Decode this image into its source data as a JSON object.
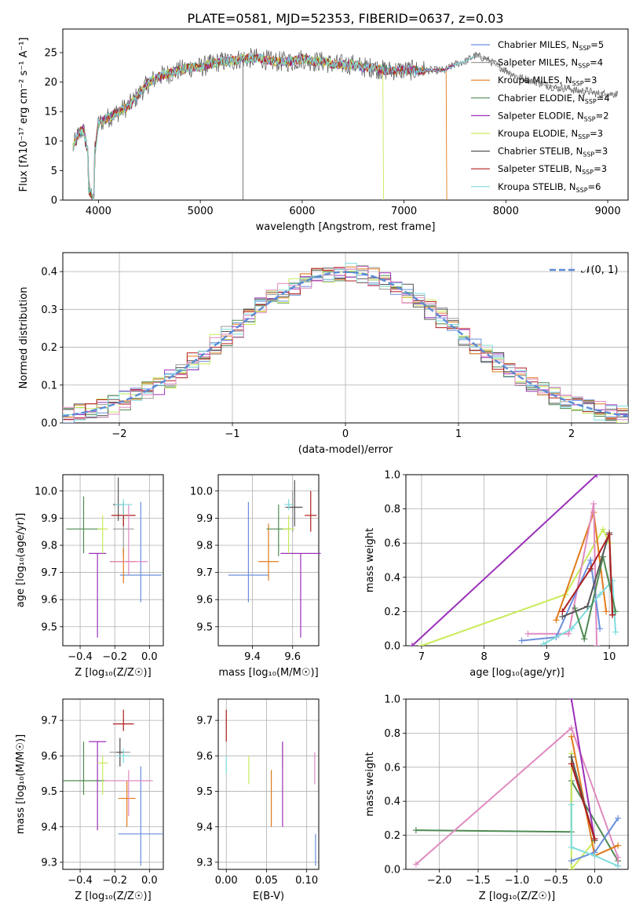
{
  "figure": {
    "title": "PLATE=0581, MJD=52353, FIBERID=0637, z=0.03"
  },
  "colors": {
    "chabrier_miles": "#6a8fdc",
    "salpeter_miles": "#9a9a9a",
    "kroupa_miles": "#e07b1a",
    "chabrier_elodie": "#4f8a52",
    "salpeter_elodie": "#9b30b8",
    "kroupa_elodie": "#c8ea5a",
    "chabrier_stelib": "#555555",
    "salpeter_stelib": "#b01e1e",
    "kroupa_stelib": "#7fdcdc",
    "pink": "#e08ac0",
    "gauss": "#5b8bd6"
  },
  "chart_data": [
    {
      "type": "line",
      "id": "spectrum",
      "xlabel": "wavelength [Angstrom, rest frame]",
      "ylabel": "Flux [fλ10⁻¹⁷ erg cm⁻² s⁻¹ A⁻¹]",
      "xlim": [
        3650,
        9200
      ],
      "ylim": [
        0,
        29
      ],
      "xticks": [
        4000,
        5000,
        6000,
        7000,
        8000,
        9000
      ],
      "yticks": [
        0,
        5,
        10,
        15,
        20,
        25
      ],
      "x": [
        3750,
        3800,
        3850,
        3900,
        3950,
        4000,
        4100,
        4200,
        4300,
        4400,
        4500,
        4600,
        4700,
        4800,
        4900,
        5000,
        5100,
        5200,
        5300,
        5400,
        5500,
        5600,
        5700,
        5800,
        5900,
        6000,
        6100,
        6200,
        6300,
        6400,
        6500,
        6600,
        6700,
        6800,
        6900,
        7000,
        7100,
        7200,
        7300,
        7400,
        7500,
        7600,
        7700,
        7800,
        7900,
        8000,
        8100,
        8200,
        8300,
        8400,
        8500,
        8600,
        8700,
        8800,
        8900,
        9000,
        9100
      ],
      "data_y": [
        9,
        11,
        12,
        8,
        6,
        13,
        14,
        15,
        16,
        18,
        20,
        21,
        21.5,
        22,
        22.5,
        22.5,
        23,
        23.5,
        23.5,
        24,
        24,
        24,
        23.5,
        23.5,
        23.5,
        24,
        23.5,
        23.5,
        23,
        23,
        23,
        22.5,
        22.5,
        22,
        22,
        22,
        22,
        22,
        22,
        22,
        23,
        23.5,
        24.5,
        24,
        23,
        22,
        21,
        20.5,
        20,
        19.5,
        19,
        19,
        18.5,
        18.5,
        18,
        18,
        18
      ],
      "legend": [
        {
          "label": "Chabrier MILES, N",
          "sub": "SSP",
          "suffix": "=5",
          "color_key": "chabrier_miles"
        },
        {
          "label": "Salpeter MILES, N",
          "sub": "SSP",
          "suffix": "=4",
          "color_key": "salpeter_miles"
        },
        {
          "label": "Kroupa MILES, N",
          "sub": "SSP",
          "suffix": "=3",
          "color_key": "kroupa_miles"
        },
        {
          "label": "Chabrier ELODIE, N",
          "sub": "SSP",
          "suffix": "=4",
          "color_key": "chabrier_elodie"
        },
        {
          "label": "Salpeter ELODIE, N",
          "sub": "SSP",
          "suffix": "=2",
          "color_key": "salpeter_elodie"
        },
        {
          "label": "Kroupa ELODIE, N",
          "sub": "SSP",
          "suffix": "=3",
          "color_key": "kroupa_elodie"
        },
        {
          "label": "Chabrier STELIB, N",
          "sub": "SSP",
          "suffix": "=3",
          "color_key": "chabrier_stelib"
        },
        {
          "label": "Salpeter STELIB, N",
          "sub": "SSP",
          "suffix": "=3",
          "color_key": "salpeter_stelib"
        },
        {
          "label": "Kroupa STELIB, N",
          "sub": "SSP",
          "suffix": "=6",
          "color_key": "kroupa_stelib"
        }
      ]
    },
    {
      "type": "line",
      "id": "residuals",
      "xlabel": "(data-model)/error",
      "ylabel": "Normed distribution",
      "xlim": [
        -2.5,
        2.5
      ],
      "ylim": [
        0,
        0.45
      ],
      "xticks": [
        -2,
        -1,
        0,
        1,
        2
      ],
      "yticks": [
        0.0,
        0.1,
        0.2,
        0.3,
        0.4
      ],
      "gauss_label": "𝒩(0, 1)"
    },
    {
      "type": "scatter",
      "id": "age_vs_Z",
      "xlabel": "Z [log₁₀(Z/Z☉)]",
      "ylabel": "age  [log₁₀(age/yr)]",
      "xlim": [
        -0.5,
        0.08
      ],
      "ylim": [
        9.43,
        10.06
      ],
      "xticks": [
        -0.4,
        -0.2,
        0.0
      ],
      "yticks": [
        9.5,
        9.6,
        9.7,
        9.8,
        9.9,
        10.0
      ],
      "points": [
        {
          "x": -0.05,
          "y": 9.69,
          "xerr": 0.12,
          "yerr_lo": 0.1,
          "yerr_hi": 0.27,
          "color_key": "chabrier_miles"
        },
        {
          "x": -0.15,
          "y": 9.86,
          "xerr": 0.06,
          "yerr_lo": 0.1,
          "yerr_hi": 0.1,
          "color_key": "salpeter_miles"
        },
        {
          "x": -0.15,
          "y": 9.74,
          "xerr": 0.07,
          "yerr_lo": 0.08,
          "yerr_hi": 0.05,
          "color_key": "kroupa_miles"
        },
        {
          "x": -0.38,
          "y": 9.86,
          "xerr": 0.1,
          "yerr_lo": 0.09,
          "yerr_hi": 0.12,
          "color_key": "chabrier_elodie"
        },
        {
          "x": -0.3,
          "y": 9.77,
          "xerr": 0.05,
          "yerr_lo": 0.31,
          "yerr_hi": 0.0,
          "color_key": "salpeter_elodie"
        },
        {
          "x": -0.27,
          "y": 9.86,
          "xerr": 0.03,
          "yerr_lo": 0.09,
          "yerr_hi": 0.05,
          "color_key": "kroupa_elodie"
        },
        {
          "x": -0.18,
          "y": 9.95,
          "xerr": 0.03,
          "yerr_lo": 0.06,
          "yerr_hi": 0.1,
          "color_key": "chabrier_stelib"
        },
        {
          "x": -0.15,
          "y": 9.91,
          "xerr": 0.07,
          "yerr_lo": 0.04,
          "yerr_hi": 0.04,
          "color_key": "salpeter_stelib"
        },
        {
          "x": -0.12,
          "y": 9.74,
          "xerr": 0.11,
          "yerr_lo": 0.05,
          "yerr_hi": 0.21,
          "color_key": "pink"
        },
        {
          "x": -0.15,
          "y": 9.95,
          "xerr": 0.05,
          "yerr_lo": 0.04,
          "yerr_hi": 0.02,
          "color_key": "kroupa_stelib"
        }
      ]
    },
    {
      "type": "scatter",
      "id": "age_vs_mass",
      "xlabel": "mass [log₁₀(M/M☉)]",
      "xlim": [
        9.23,
        9.73
      ],
      "ylim": [
        9.43,
        10.06
      ],
      "xticks": [
        9.4,
        9.6
      ],
      "yticks": [
        9.5,
        9.6,
        9.7,
        9.8,
        9.9,
        10.0
      ],
      "points": [
        {
          "x": 9.38,
          "y": 9.69,
          "xerr": 0.1,
          "yerr_lo": 0.1,
          "yerr_hi": 0.27,
          "color_key": "chabrier_miles"
        },
        {
          "x": 9.6,
          "y": 9.94,
          "xerr": 0.04,
          "yerr_lo": 0.09,
          "yerr_hi": 0.06,
          "color_key": "salpeter_miles"
        },
        {
          "x": 9.48,
          "y": 9.74,
          "xerr": 0.05,
          "yerr_lo": 0.07,
          "yerr_hi": 0.14,
          "color_key": "kroupa_miles"
        },
        {
          "x": 9.53,
          "y": 9.86,
          "xerr": 0.06,
          "yerr_lo": 0.1,
          "yerr_hi": 0.09,
          "color_key": "chabrier_elodie"
        },
        {
          "x": 9.64,
          "y": 9.77,
          "xerr": 0.1,
          "yerr_lo": 0.31,
          "yerr_hi": 0.0,
          "color_key": "salpeter_elodie"
        },
        {
          "x": 9.58,
          "y": 9.86,
          "xerr": 0.03,
          "yerr_lo": 0.09,
          "yerr_hi": 0.05,
          "color_key": "kroupa_elodie"
        },
        {
          "x": 9.61,
          "y": 9.94,
          "xerr": 0.04,
          "yerr_lo": 0.07,
          "yerr_hi": 0.1,
          "color_key": "chabrier_stelib"
        },
        {
          "x": 9.69,
          "y": 9.91,
          "xerr": 0.03,
          "yerr_lo": 0.06,
          "yerr_hi": 0.09,
          "color_key": "salpeter_stelib"
        },
        {
          "x": 9.58,
          "y": 9.95,
          "xerr": 0.02,
          "yerr_lo": 0.02,
          "yerr_hi": 0.02,
          "color_key": "kroupa_stelib"
        }
      ]
    },
    {
      "type": "line",
      "id": "weight_vs_age",
      "xlabel": "age  [log₁₀(age/yr)]",
      "ylabel": "mass weight",
      "xlim": [
        6.75,
        10.3
      ],
      "ylim": [
        0,
        1.0
      ],
      "xticks": [
        7,
        8,
        9,
        10
      ],
      "yticks": [
        0.0,
        0.2,
        0.4,
        0.6,
        0.8,
        1.0
      ],
      "series": [
        {
          "color_key": "salpeter_elodie",
          "x": [
            6.85,
            9.8
          ],
          "y": [
            0.0,
            1.0
          ]
        },
        {
          "color_key": "kroupa_elodie",
          "x": [
            7.0,
            9.3,
            9.9,
            10.0
          ],
          "y": [
            0.0,
            0.3,
            0.68,
            0.6
          ]
        },
        {
          "color_key": "kroupa_miles",
          "x": [
            9.15,
            9.75,
            9.95
          ],
          "y": [
            0.15,
            0.78,
            0.2
          ]
        },
        {
          "color_key": "pink",
          "x": [
            8.7,
            9.35,
            9.75,
            9.8
          ],
          "y": [
            0.07,
            0.07,
            0.83,
            0.0
          ]
        },
        {
          "color_key": "chabrier_miles",
          "x": [
            8.6,
            9.15,
            9.7,
            9.85
          ],
          "y": [
            0.03,
            0.05,
            0.5,
            0.1
          ]
        },
        {
          "color_key": "kroupa_stelib",
          "x": [
            8.95,
            9.4,
            9.85,
            10.05,
            10.1
          ],
          "y": [
            0.01,
            0.1,
            0.3,
            0.38,
            0.08
          ]
        },
        {
          "color_key": "chabrier_elodie",
          "x": [
            9.45,
            9.6,
            9.9,
            10.1
          ],
          "y": [
            0.22,
            0.04,
            0.52,
            0.2
          ]
        },
        {
          "color_key": "chabrier_stelib",
          "x": [
            9.25,
            9.65,
            10.0,
            10.05
          ],
          "y": [
            0.17,
            0.23,
            0.66,
            0.18
          ]
        },
        {
          "color_key": "salpeter_stelib",
          "x": [
            9.25,
            9.7,
            10.0,
            10.05
          ],
          "y": [
            0.2,
            0.45,
            0.65,
            0.18
          ]
        }
      ]
    },
    {
      "type": "scatter",
      "id": "mass_vs_Z",
      "xlabel": "Z [log₁₀(Z/Z☉)]",
      "ylabel": "mass [log₁₀(M/M☉)]",
      "xlim": [
        -0.5,
        0.08
      ],
      "ylim": [
        9.28,
        9.76
      ],
      "xticks": [
        -0.4,
        -0.2,
        0.0
      ],
      "yticks": [
        9.3,
        9.4,
        9.5,
        9.6,
        9.7
      ],
      "points": [
        {
          "x": -0.05,
          "y": 9.38,
          "xerr": 0.13,
          "yerr_lo": 0.09,
          "yerr_hi": 0.19,
          "color_key": "chabrier_miles"
        },
        {
          "x": -0.17,
          "y": 9.61,
          "xerr": 0.06,
          "yerr_lo": 0.04,
          "yerr_hi": 0.04,
          "color_key": "salpeter_miles"
        },
        {
          "x": -0.13,
          "y": 9.48,
          "xerr": 0.05,
          "yerr_lo": 0.08,
          "yerr_hi": 0.05,
          "color_key": "kroupa_miles"
        },
        {
          "x": -0.38,
          "y": 9.53,
          "xerr": 0.12,
          "yerr_lo": 0.04,
          "yerr_hi": 0.11,
          "color_key": "chabrier_elodie"
        },
        {
          "x": -0.3,
          "y": 9.64,
          "xerr": 0.05,
          "yerr_lo": 0.25,
          "yerr_hi": 0.0,
          "color_key": "salpeter_elodie"
        },
        {
          "x": -0.27,
          "y": 9.58,
          "xerr": 0.03,
          "yerr_lo": 0.09,
          "yerr_hi": 0.02,
          "color_key": "kroupa_elodie"
        },
        {
          "x": -0.17,
          "y": 9.61,
          "xerr": 0.02,
          "yerr_lo": 0.04,
          "yerr_hi": 0.04,
          "color_key": "chabrier_stelib"
        },
        {
          "x": -0.15,
          "y": 9.69,
          "xerr": 0.06,
          "yerr_lo": 0.02,
          "yerr_hi": 0.04,
          "color_key": "salpeter_stelib"
        },
        {
          "x": -0.12,
          "y": 9.53,
          "xerr": 0.14,
          "yerr_lo": 0.1,
          "yerr_hi": 0.03,
          "color_key": "pink"
        },
        {
          "x": -0.15,
          "y": 9.6,
          "xerr": 0.04,
          "yerr_lo": 0.02,
          "yerr_hi": 0.02,
          "color_key": "kroupa_stelib"
        }
      ]
    },
    {
      "type": "scatter",
      "id": "mass_vs_ebv",
      "xlabel": "E(B-V)",
      "xlim": [
        -0.01,
        0.115
      ],
      "ylim": [
        9.28,
        9.76
      ],
      "xticks": [
        0.0,
        0.05,
        0.1
      ],
      "yticks": [
        9.3,
        9.4,
        9.5,
        9.6,
        9.7
      ],
      "points": [
        {
          "x": 0.111,
          "y": 9.38,
          "yerr_lo": 0.09,
          "yerr_hi": 0.0,
          "color_key": "chabrier_miles"
        },
        {
          "x": 0.07,
          "y": 9.6,
          "yerr_lo": 0.03,
          "yerr_hi": 0.04,
          "color_key": "salpeter_miles"
        },
        {
          "x": 0.056,
          "y": 9.48,
          "yerr_lo": 0.08,
          "yerr_hi": 0.08,
          "color_key": "kroupa_miles"
        },
        {
          "x": 0.07,
          "y": 9.53,
          "yerr_lo": 0.13,
          "yerr_hi": 0.11,
          "color_key": "salpeter_elodie"
        },
        {
          "x": 0.028,
          "y": 9.58,
          "yerr_lo": 0.06,
          "yerr_hi": 0.02,
          "color_key": "kroupa_elodie"
        },
        {
          "x": 0.0,
          "y": 9.66,
          "yerr_lo": 0.02,
          "yerr_hi": 0.07,
          "color_key": "salpeter_stelib"
        },
        {
          "x": 0.0,
          "y": 9.58,
          "yerr_lo": 0.03,
          "yerr_hi": 0.02,
          "color_key": "kroupa_stelib"
        },
        {
          "x": 0.11,
          "y": 9.57,
          "yerr_lo": 0.05,
          "yerr_hi": 0.04,
          "color_key": "pink"
        }
      ]
    },
    {
      "type": "line",
      "id": "weight_vs_Z",
      "xlabel": "Z [log₁₀(Z/Z☉)]",
      "ylabel": "mass weight",
      "xlim": [
        -2.43,
        0.43
      ],
      "ylim": [
        0,
        1.0
      ],
      "xticks": [
        -2.0,
        -1.5,
        -1.0,
        -0.5,
        0.0
      ],
      "yticks": [
        0.0,
        0.2,
        0.4,
        0.6,
        0.8,
        1.0
      ],
      "series": [
        {
          "color_key": "chabrier_elodie",
          "x": [
            -2.3,
            -0.3,
            -0.3,
            0.3
          ],
          "y": [
            0.23,
            0.22,
            0.52,
            0.05
          ]
        },
        {
          "color_key": "pink",
          "x": [
            -2.3,
            -0.3,
            0.3,
            0.3
          ],
          "y": [
            0.03,
            0.83,
            0.07,
            0.02
          ]
        },
        {
          "color_key": "salpeter_elodie",
          "x": [
            -0.3,
            0.0
          ],
          "y": [
            1.0,
            0.17
          ]
        },
        {
          "color_key": "kroupa_elodie",
          "x": [
            -0.3,
            -0.3,
            0.0
          ],
          "y": [
            0.68,
            0.0,
            0.17
          ]
        },
        {
          "color_key": "kroupa_miles",
          "x": [
            -0.3,
            0.0,
            0.3
          ],
          "y": [
            0.78,
            0.08,
            0.14
          ]
        },
        {
          "color_key": "chabrier_stelib",
          "x": [
            -0.3,
            0.0
          ],
          "y": [
            0.66,
            0.17
          ]
        },
        {
          "color_key": "salpeter_stelib",
          "x": [
            -0.3,
            0.0
          ],
          "y": [
            0.62,
            0.18
          ]
        },
        {
          "color_key": "chabrier_miles",
          "x": [
            -0.3,
            0.0,
            0.3
          ],
          "y": [
            0.05,
            0.1,
            0.3
          ]
        },
        {
          "color_key": "kroupa_stelib",
          "x": [
            -0.3,
            -0.3,
            0.0,
            0.3
          ],
          "y": [
            0.38,
            0.13,
            0.08,
            0.02
          ]
        }
      ]
    }
  ]
}
